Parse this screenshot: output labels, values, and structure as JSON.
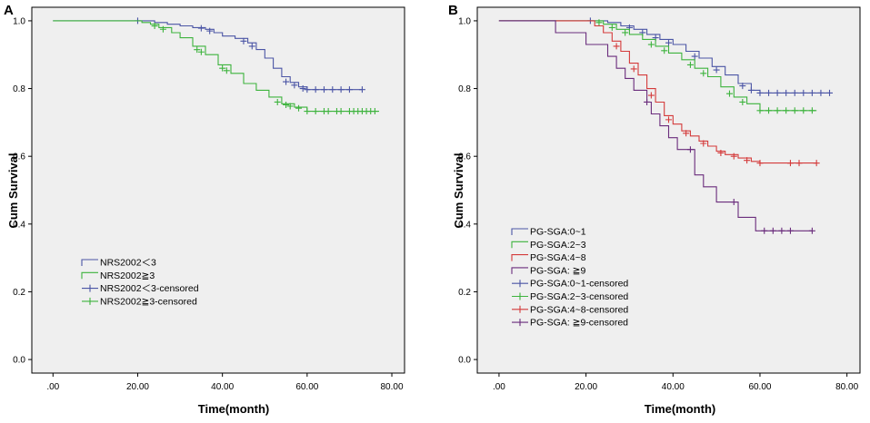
{
  "chart_data": [
    {
      "panel_label": "A",
      "type": "line",
      "subtype": "kaplan-meier",
      "xlabel": "Time(month)",
      "ylabel": "Cum Survival",
      "xlim": [
        -5,
        83
      ],
      "ylim": [
        -0.04,
        1.04
      ],
      "xticks": [
        0,
        20,
        40,
        60,
        80
      ],
      "xtick_labels": [
        ".00",
        "20.00",
        "40.00",
        "60.00",
        "80.00"
      ],
      "yticks": [
        0,
        0.2,
        0.4,
        0.6,
        0.8,
        1.0
      ],
      "ytick_labels": [
        "0.0",
        "0.2",
        "0.4",
        "0.6",
        "0.8",
        "1.0"
      ],
      "legend_position": "lower-left",
      "legend": [
        {
          "label": "NRS2002＜3",
          "kind": "line",
          "color": "#4B55A5"
        },
        {
          "label": "NRS2002≧3",
          "kind": "line",
          "color": "#3DB33D"
        },
        {
          "label": "NRS2002＜3-censored",
          "kind": "censor",
          "color": "#4B55A5"
        },
        {
          "label": "NRS2002≧3-censored",
          "kind": "censor",
          "color": "#3DB33D"
        }
      ],
      "series": [
        {
          "name": "NRS2002＜3",
          "color": "#4B55A5",
          "points": [
            [
              0,
              1.0
            ],
            [
              21,
              1.0
            ],
            [
              24,
              0.995
            ],
            [
              27,
              0.99
            ],
            [
              30,
              0.985
            ],
            [
              33,
              0.98
            ],
            [
              36,
              0.975
            ],
            [
              38,
              0.965
            ],
            [
              40,
              0.955
            ],
            [
              43,
              0.948
            ],
            [
              46,
              0.935
            ],
            [
              48,
              0.915
            ],
            [
              50,
              0.89
            ],
            [
              52,
              0.86
            ],
            [
              54,
              0.835
            ],
            [
              56,
              0.818
            ],
            [
              58,
              0.805
            ],
            [
              60,
              0.797
            ],
            [
              73,
              0.797
            ]
          ],
          "censored": [
            [
              20,
              1.0
            ],
            [
              35,
              0.978
            ],
            [
              37,
              0.97
            ],
            [
              45,
              0.94
            ],
            [
              47,
              0.925
            ],
            [
              55,
              0.82
            ],
            [
              57,
              0.81
            ],
            [
              59,
              0.8
            ],
            [
              60,
              0.797
            ],
            [
              62,
              0.797
            ],
            [
              64,
              0.797
            ],
            [
              66,
              0.797
            ],
            [
              68,
              0.797
            ],
            [
              70,
              0.797
            ],
            [
              73,
              0.797
            ]
          ]
        },
        {
          "name": "NRS2002≧3",
          "color": "#3DB33D",
          "points": [
            [
              0,
              1.0
            ],
            [
              19,
              1.0
            ],
            [
              21,
              0.995
            ],
            [
              23,
              0.99
            ],
            [
              25,
              0.98
            ],
            [
              28,
              0.965
            ],
            [
              30,
              0.95
            ],
            [
              33,
              0.925
            ],
            [
              36,
              0.9
            ],
            [
              39,
              0.87
            ],
            [
              42,
              0.845
            ],
            [
              45,
              0.815
            ],
            [
              48,
              0.795
            ],
            [
              51,
              0.775
            ],
            [
              54,
              0.755
            ],
            [
              57,
              0.745
            ],
            [
              60,
              0.733
            ],
            [
              77,
              0.733
            ]
          ],
          "censored": [
            [
              24,
              0.985
            ],
            [
              26,
              0.975
            ],
            [
              34,
              0.915
            ],
            [
              35,
              0.908
            ],
            [
              40,
              0.86
            ],
            [
              41,
              0.853
            ],
            [
              53,
              0.76
            ],
            [
              55,
              0.752
            ],
            [
              56,
              0.748
            ],
            [
              58,
              0.742
            ],
            [
              60,
              0.733
            ],
            [
              62,
              0.733
            ],
            [
              64,
              0.733
            ],
            [
              65,
              0.733
            ],
            [
              67,
              0.733
            ],
            [
              68,
              0.733
            ],
            [
              70,
              0.733
            ],
            [
              71,
              0.733
            ],
            [
              72,
              0.733
            ],
            [
              73,
              0.733
            ],
            [
              74,
              0.733
            ],
            [
              75,
              0.733
            ],
            [
              76,
              0.733
            ]
          ]
        }
      ]
    },
    {
      "panel_label": "B",
      "type": "line",
      "subtype": "kaplan-meier",
      "xlabel": "Time(month)",
      "ylabel": "Cum Survival",
      "xlim": [
        -5,
        83
      ],
      "ylim": [
        -0.04,
        1.04
      ],
      "xticks": [
        0,
        20,
        40,
        60,
        80
      ],
      "xtick_labels": [
        ".00",
        "20.00",
        "40.00",
        "60.00",
        "80.00"
      ],
      "yticks": [
        0,
        0.2,
        0.4,
        0.6,
        0.8,
        1.0
      ],
      "ytick_labels": [
        "0.0",
        "0.2",
        "0.4",
        "0.6",
        "0.8",
        "1.0"
      ],
      "legend_position": "lower-left",
      "legend": [
        {
          "label": "PG-SGA:0~1",
          "kind": "line",
          "color": "#4B55A5"
        },
        {
          "label": "PG-SGA:2~3",
          "kind": "line",
          "color": "#3DB33D"
        },
        {
          "label": "PG-SGA:4~8",
          "kind": "line",
          "color": "#D43A3A"
        },
        {
          "label": "PG-SGA: ≧9",
          "kind": "line",
          "color": "#6A2C7C"
        },
        {
          "label": "PG-SGA:0~1-censored",
          "kind": "censor",
          "color": "#4B55A5"
        },
        {
          "label": "PG-SGA:2~3-censored",
          "kind": "censor",
          "color": "#3DB33D"
        },
        {
          "label": "PG-SGA:4~8-censored",
          "kind": "censor",
          "color": "#D43A3A"
        },
        {
          "label": "PG-SGA: ≧9-censored",
          "kind": "censor",
          "color": "#6A2C7C"
        }
      ],
      "series": [
        {
          "name": "PG-SGA:0~1",
          "color": "#4B55A5",
          "points": [
            [
              0,
              1.0
            ],
            [
              22,
              1.0
            ],
            [
              25,
              0.995
            ],
            [
              28,
              0.985
            ],
            [
              31,
              0.975
            ],
            [
              34,
              0.96
            ],
            [
              37,
              0.945
            ],
            [
              40,
              0.93
            ],
            [
              43,
              0.91
            ],
            [
              46,
              0.89
            ],
            [
              49,
              0.865
            ],
            [
              52,
              0.84
            ],
            [
              55,
              0.815
            ],
            [
              58,
              0.795
            ],
            [
              60,
              0.787
            ],
            [
              76,
              0.787
            ]
          ],
          "censored": [
            [
              21,
              1.0
            ],
            [
              30,
              0.98
            ],
            [
              33,
              0.965
            ],
            [
              36,
              0.95
            ],
            [
              39,
              0.935
            ],
            [
              45,
              0.895
            ],
            [
              50,
              0.855
            ],
            [
              56,
              0.808
            ],
            [
              58,
              0.795
            ],
            [
              60,
              0.787
            ],
            [
              62,
              0.787
            ],
            [
              64,
              0.787
            ],
            [
              66,
              0.787
            ],
            [
              68,
              0.787
            ],
            [
              70,
              0.787
            ],
            [
              72,
              0.787
            ],
            [
              74,
              0.787
            ],
            [
              76,
              0.787
            ]
          ]
        },
        {
          "name": "PG-SGA:2~3",
          "color": "#3DB33D",
          "points": [
            [
              0,
              1.0
            ],
            [
              20,
              1.0
            ],
            [
              24,
              0.99
            ],
            [
              27,
              0.975
            ],
            [
              30,
              0.96
            ],
            [
              33,
              0.945
            ],
            [
              36,
              0.925
            ],
            [
              39,
              0.905
            ],
            [
              42,
              0.885
            ],
            [
              45,
              0.86
            ],
            [
              48,
              0.835
            ],
            [
              51,
              0.805
            ],
            [
              54,
              0.775
            ],
            [
              57,
              0.755
            ],
            [
              60,
              0.735
            ],
            [
              73,
              0.735
            ]
          ],
          "censored": [
            [
              23,
              0.995
            ],
            [
              26,
              0.98
            ],
            [
              29,
              0.965
            ],
            [
              35,
              0.93
            ],
            [
              38,
              0.912
            ],
            [
              44,
              0.87
            ],
            [
              47,
              0.845
            ],
            [
              53,
              0.785
            ],
            [
              56,
              0.76
            ],
            [
              60,
              0.735
            ],
            [
              62,
              0.735
            ],
            [
              64,
              0.735
            ],
            [
              66,
              0.735
            ],
            [
              68,
              0.735
            ],
            [
              70,
              0.735
            ],
            [
              72,
              0.735
            ]
          ]
        },
        {
          "name": "PG-SGA:4~8",
          "color": "#D43A3A",
          "points": [
            [
              0,
              1.0
            ],
            [
              20,
              1.0
            ],
            [
              22,
              0.985
            ],
            [
              24,
              0.965
            ],
            [
              26,
              0.94
            ],
            [
              28,
              0.91
            ],
            [
              30,
              0.875
            ],
            [
              32,
              0.84
            ],
            [
              34,
              0.8
            ],
            [
              36,
              0.76
            ],
            [
              38,
              0.72
            ],
            [
              40,
              0.695
            ],
            [
              42,
              0.675
            ],
            [
              44,
              0.66
            ],
            [
              46,
              0.645
            ],
            [
              48,
              0.63
            ],
            [
              50,
              0.615
            ],
            [
              52,
              0.605
            ],
            [
              55,
              0.595
            ],
            [
              58,
              0.585
            ],
            [
              60,
              0.58
            ],
            [
              73,
              0.58
            ]
          ],
          "censored": [
            [
              27,
              0.925
            ],
            [
              31,
              0.858
            ],
            [
              35,
              0.78
            ],
            [
              39,
              0.708
            ],
            [
              43,
              0.668
            ],
            [
              47,
              0.638
            ],
            [
              51,
              0.61
            ],
            [
              54,
              0.6
            ],
            [
              57,
              0.588
            ],
            [
              60,
              0.58
            ],
            [
              67,
              0.58
            ],
            [
              69,
              0.58
            ],
            [
              73,
              0.58
            ]
          ]
        },
        {
          "name": "PG-SGA: ≧9",
          "color": "#6A2C7C",
          "points": [
            [
              0,
              1.0
            ],
            [
              13,
              1.0
            ],
            [
              13,
              0.965
            ],
            [
              20,
              0.965
            ],
            [
              20,
              0.93
            ],
            [
              25,
              0.93
            ],
            [
              25,
              0.895
            ],
            [
              27,
              0.895
            ],
            [
              27,
              0.86
            ],
            [
              29,
              0.86
            ],
            [
              29,
              0.83
            ],
            [
              31,
              0.83
            ],
            [
              31,
              0.795
            ],
            [
              34,
              0.795
            ],
            [
              34,
              0.76
            ],
            [
              35,
              0.76
            ],
            [
              35,
              0.725
            ],
            [
              37,
              0.725
            ],
            [
              37,
              0.69
            ],
            [
              39,
              0.69
            ],
            [
              39,
              0.655
            ],
            [
              41,
              0.655
            ],
            [
              41,
              0.62
            ],
            [
              45,
              0.62
            ],
            [
              45,
              0.545
            ],
            [
              47,
              0.545
            ],
            [
              47,
              0.51
            ],
            [
              50,
              0.51
            ],
            [
              50,
              0.465
            ],
            [
              55,
              0.465
            ],
            [
              55,
              0.42
            ],
            [
              59,
              0.42
            ],
            [
              59,
              0.38
            ],
            [
              72,
              0.38
            ]
          ],
          "censored": [
            [
              34,
              0.76
            ],
            [
              44,
              0.62
            ],
            [
              54,
              0.465
            ],
            [
              61,
              0.38
            ],
            [
              63,
              0.38
            ],
            [
              65,
              0.38
            ],
            [
              67,
              0.38
            ],
            [
              72,
              0.38
            ]
          ]
        }
      ]
    }
  ]
}
